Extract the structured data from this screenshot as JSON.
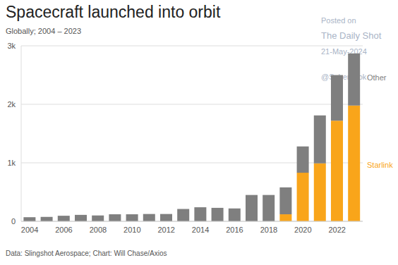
{
  "chart_data": {
    "type": "bar",
    "title": "Spacecraft launched into orbit",
    "subtitle": "Globally; 2004 – 2023",
    "source": "Data: Slingshot Aerospace; Chart: Will Chase/Axios",
    "annotations": [
      "Posted on",
      "The Daily Shot",
      "21-May-2024",
      "@SoberLook"
    ],
    "categories": [
      "2004",
      null,
      "2006",
      null,
      "2008",
      null,
      "2010",
      null,
      "2012",
      null,
      "2014",
      null,
      "2016",
      null,
      "2018",
      null,
      "2020",
      null,
      "2022",
      null
    ],
    "series": [
      {
        "name": "Starlink",
        "color": "#f9a51a",
        "values": [
          0,
          0,
          0,
          0,
          0,
          0,
          0,
          0,
          0,
          0,
          0,
          0,
          0,
          0,
          0,
          120,
          830,
          990,
          1720,
          1980
        ]
      },
      {
        "name": "Other",
        "color": "#7f7f7f",
        "values": [
          70,
          75,
          95,
          110,
          100,
          120,
          120,
          125,
          125,
          210,
          240,
          230,
          220,
          450,
          450,
          460,
          450,
          820,
          780,
          890
        ]
      }
    ],
    "stacked": true,
    "ylim": [
      0,
      3000
    ],
    "yticks": [
      0,
      {
        "value": 1000,
        "label": "1k"
      },
      {
        "value": 2000,
        "label": "2k"
      },
      {
        "value": 3000,
        "label": "3k"
      }
    ],
    "grid": true
  }
}
